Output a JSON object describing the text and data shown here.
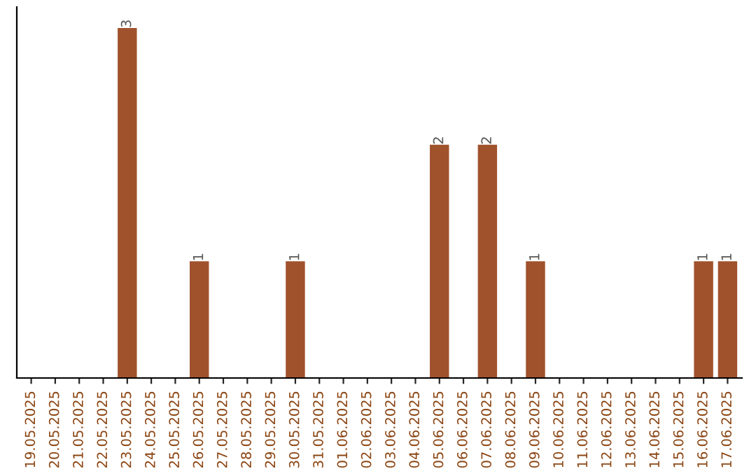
{
  "chart_data": {
    "type": "bar",
    "categories": [
      "19.05.2025",
      "20.05.2025",
      "21.05.2025",
      "22.05.2025",
      "23.05.2025",
      "24.05.2025",
      "25.05.2025",
      "26.05.2025",
      "27.05.2025",
      "28.05.2025",
      "29.05.2025",
      "30.05.2025",
      "31.05.2025",
      "01.06.2025",
      "02.06.2025",
      "03.06.2025",
      "04.06.2025",
      "05.06.2025",
      "06.06.2025",
      "07.06.2025",
      "08.06.2025",
      "09.06.2025",
      "10.06.2025",
      "11.06.2025",
      "12.06.2025",
      "13.06.2025",
      "14.06.2025",
      "15.06.2025",
      "16.06.2025",
      "17.06.2025"
    ],
    "values": [
      0,
      0,
      0,
      0,
      3,
      0,
      0,
      1,
      0,
      0,
      0,
      1,
      0,
      0,
      0,
      0,
      0,
      2,
      0,
      2,
      0,
      1,
      0,
      0,
      0,
      0,
      0,
      0,
      1,
      1
    ],
    "value_labels": [
      null,
      null,
      null,
      null,
      "3",
      null,
      null,
      "1",
      null,
      null,
      null,
      "1",
      null,
      null,
      null,
      null,
      null,
      "2",
      null,
      "2",
      null,
      "1",
      null,
      null,
      null,
      null,
      null,
      null,
      "1",
      "1"
    ],
    "color": "#a0522d",
    "grid": false,
    "legend": false,
    "tick_labels": "x"
  }
}
